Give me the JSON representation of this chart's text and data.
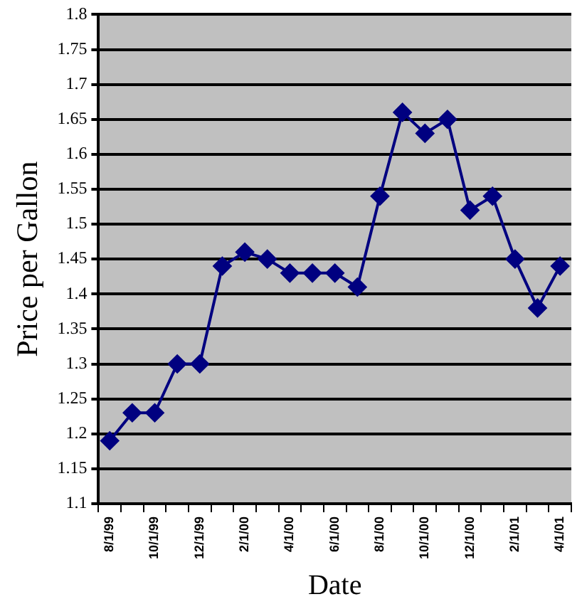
{
  "chart_data": {
    "type": "line",
    "xlabel": "Date",
    "ylabel": "Price per Gallon",
    "categories": [
      "8/1/99",
      null,
      "10/1/99",
      null,
      "12/1/99",
      null,
      "2/1/00",
      null,
      "4/1/00",
      null,
      "6/1/00",
      null,
      "8/1/00",
      null,
      "10/1/00",
      null,
      "12/1/00",
      null,
      "2/1/01",
      null,
      "4/1/01"
    ],
    "values": [
      1.19,
      1.23,
      1.23,
      1.3,
      1.3,
      1.44,
      1.46,
      1.45,
      1.43,
      1.43,
      1.43,
      1.41,
      1.54,
      1.66,
      1.63,
      1.65,
      1.52,
      1.54,
      1.45,
      1.38,
      1.44
    ],
    "color": "#000080",
    "marker": "diamond",
    "line_style": "solid",
    "ylim": [
      1.1,
      1.8
    ],
    "yticks": [
      1.1,
      1.15,
      1.2,
      1.25,
      1.3,
      1.35,
      1.4,
      1.45,
      1.5,
      1.55,
      1.6,
      1.65,
      1.7,
      1.75,
      1.8
    ],
    "grid": "y",
    "legend": false
  }
}
